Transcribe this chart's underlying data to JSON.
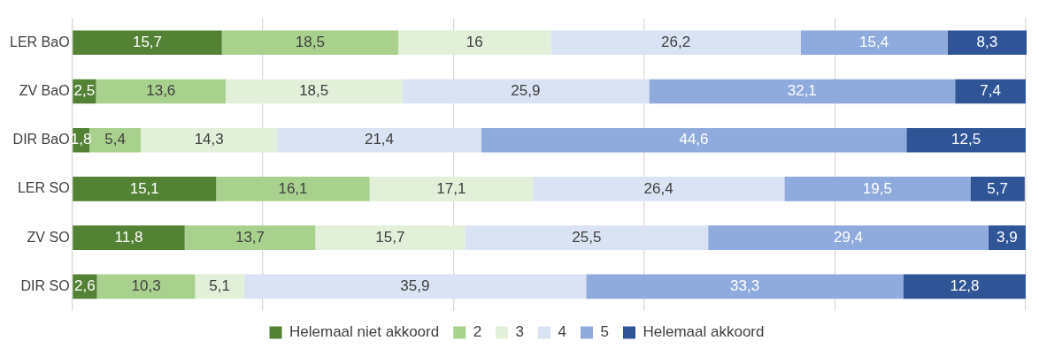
{
  "chart_data": {
    "type": "bar",
    "orientation": "horizontal",
    "stacked": true,
    "categories": [
      "LER BaO",
      "ZV BaO",
      "DIR BaO",
      "LER SO",
      "ZV SO",
      "DIR SO"
    ],
    "xlim": [
      0,
      100.1
    ],
    "xticks": [
      {
        "value": 0,
        "label": null
      },
      {
        "value": 20,
        "label": null
      },
      {
        "value": 40,
        "label": null
      },
      {
        "value": 60,
        "label": null
      },
      {
        "value": 80,
        "label": null
      },
      {
        "value": 100,
        "label": null
      }
    ],
    "tick_labels": "y",
    "grid": "x",
    "legend": "bottom",
    "series": [
      {
        "name": "Helemaal niet akkoord",
        "color": "#548235",
        "values": [
          15.7,
          2.5,
          1.8,
          15.1,
          11.8,
          2.6
        ],
        "value_labels": [
          "15,7",
          "2,5",
          "1,8",
          "15,1",
          "11,8",
          "2,6"
        ]
      },
      {
        "name": "2",
        "color": "#a9d18e",
        "values": [
          18.5,
          13.6,
          5.4,
          16.1,
          13.7,
          10.3
        ],
        "value_labels": [
          "18,5",
          "13,6",
          "5,4",
          "16,1",
          "13,7",
          "10,3"
        ]
      },
      {
        "name": "3",
        "color": "#e2f0d9",
        "values": [
          16,
          18.5,
          14.3,
          17.1,
          15.7,
          5.1
        ],
        "value_labels": [
          "16",
          "18,5",
          "14,3",
          "17,1",
          "15,7",
          "5,1"
        ]
      },
      {
        "name": "4",
        "color": "#dae3f3",
        "values": [
          26.2,
          25.9,
          21.4,
          26.4,
          25.5,
          35.9
        ],
        "value_labels": [
          "26,2",
          "25,9",
          "21,4",
          "26,4",
          "25,5",
          "35,9"
        ]
      },
      {
        "name": "5",
        "color": "#8faadc",
        "values": [
          15.4,
          32.1,
          44.6,
          19.5,
          29.4,
          33.3
        ],
        "value_labels": [
          "15,4",
          "32,1",
          "44,6",
          "19,5",
          "29,4",
          "33,3"
        ]
      },
      {
        "name": "Helemaal akkoord",
        "color": "#2f5597",
        "values": [
          8.3,
          7.4,
          12.5,
          5.7,
          3.9,
          12.8
        ],
        "value_labels": [
          "8,3",
          "7,4",
          "12,5",
          "5,7",
          "3,9",
          "12,8"
        ]
      }
    ]
  }
}
